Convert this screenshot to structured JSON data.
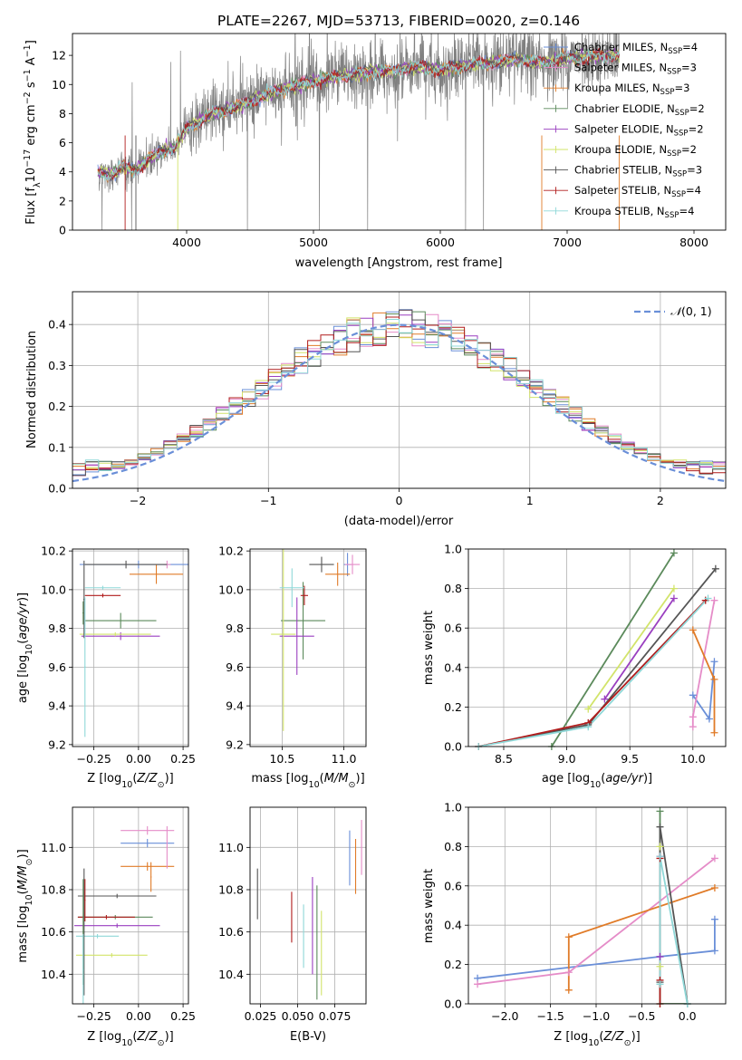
{
  "figure_title": "PLATE=2267, MJD=53713, FIBERID=0020, z=0.146",
  "series_styles": [
    {
      "name": "Chabrier MILES, N_SSP=4",
      "color": "#6a8fd8"
    },
    {
      "name": "Salpeter MILES, N_SSP=3",
      "color": "#e58cc8"
    },
    {
      "name": "Kroupa MILES, N_SSP=3",
      "color": "#e07b28"
    },
    {
      "name": "Chabrier ELODIE, N_SSP=2",
      "color": "#5b8a5b"
    },
    {
      "name": "Salpeter ELODIE, N_SSP=2",
      "color": "#9a3fc0"
    },
    {
      "name": "Kroupa ELODIE, N_SSP=2",
      "color": "#d2e46a"
    },
    {
      "name": "Chabrier STELIB, N_SSP=3",
      "color": "#555555"
    },
    {
      "name": "Salpeter STELIB, N_SSP=4",
      "color": "#b01c1c"
    },
    {
      "name": "Kroupa STELIB, N_SSP=4",
      "color": "#8fd8d8"
    }
  ],
  "data_color": "#808080",
  "chart_data": [
    {
      "id": "spectrum",
      "type": "line",
      "title": "PLATE=2267, MJD=53713, FIBERID=0020, z=0.146",
      "xlabel": "wavelength [Angstrom, rest frame]",
      "ylabel": "Flux [f_λ 10^-17 erg cm^-2 s^-1 A^-1]",
      "xlim": [
        3100,
        8250
      ],
      "ylim": [
        0,
        13.5
      ],
      "xticks": [
        4000,
        5000,
        6000,
        7000,
        8000
      ],
      "yticks": [
        0,
        2,
        4,
        6,
        8,
        10,
        12
      ],
      "grid": false,
      "legend_position": "top-right",
      "legend": [
        {
          "label": "Chabrier MILES, N",
          "sub": "SSP",
          "suffix": "=4"
        },
        {
          "label": "Salpeter MILES, N",
          "sub": "SSP",
          "suffix": "=3"
        },
        {
          "label": "Kroupa MILES, N",
          "sub": "SSP",
          "suffix": "=3"
        },
        {
          "label": "Chabrier ELODIE, N",
          "sub": "SSP",
          "suffix": "=2"
        },
        {
          "label": "Salpeter ELODIE, N",
          "sub": "SSP",
          "suffix": "=2"
        },
        {
          "label": "Kroupa ELODIE, N",
          "sub": "SSP",
          "suffix": "=2"
        },
        {
          "label": "Chabrier STELIB, N",
          "sub": "SSP",
          "suffix": "=3"
        },
        {
          "label": "Salpeter STELIB, N",
          "sub": "SSP",
          "suffix": "=4"
        },
        {
          "label": "Kroupa STELIB, N",
          "sub": "SSP",
          "suffix": "=4"
        }
      ],
      "continuum_x": [
        3300,
        3400,
        3500,
        3600,
        3700,
        3800,
        3900,
        4000,
        4200,
        4400,
        4600,
        4800,
        5000,
        5200,
        5400,
        5600,
        5800,
        6000,
        6200,
        6400,
        6600,
        6800,
        7000,
        7200,
        7400
      ],
      "continuum_y": [
        4.0,
        3.8,
        4.3,
        4.1,
        4.9,
        5.4,
        5.6,
        7.0,
        8.0,
        8.5,
        9.2,
        9.8,
        10.2,
        10.6,
        10.8,
        10.9,
        11.2,
        11.0,
        11.3,
        11.5,
        11.7,
        11.5,
        11.8,
        11.9,
        12.0
      ],
      "data_range": [
        3300,
        7410
      ],
      "model_range": [
        3300,
        7410
      ]
    },
    {
      "id": "residuals",
      "type": "histogram",
      "xlabel": "(data-model)/error",
      "ylabel": "Normed distribution",
      "xlim": [
        -2.5,
        2.5
      ],
      "ylim": [
        0,
        0.48
      ],
      "xticks": [
        -2,
        -1,
        0,
        1,
        2
      ],
      "yticks": [
        0.0,
        0.1,
        0.2,
        0.3,
        0.4
      ],
      "grid": true,
      "bin_width": 0.1,
      "reference_curve": {
        "label": "N(0,1)",
        "mean": 0,
        "sigma": 1,
        "color": "#6a8fd8"
      },
      "legend_position": "top-right"
    },
    {
      "id": "age_vs_Z",
      "type": "errorbar",
      "xlabel": "Z [log10(Z/Z⊙)]",
      "ylabel": "age [log10(age/yr)]",
      "xlim": [
        -0.37,
        0.28
      ],
      "ylim": [
        9.19,
        10.21
      ],
      "xticks": [
        -0.25,
        0.0,
        0.25
      ],
      "yticks": [
        9.2,
        9.4,
        9.6,
        9.8,
        10.0,
        10.2
      ],
      "grid": true,
      "points": [
        {
          "series": 0,
          "x": 0.0,
          "xerr": 0.33,
          "y": 10.13,
          "yerr": 0.02
        },
        {
          "series": 1,
          "x": 0.16,
          "xerr": 0.02,
          "y": 10.13,
          "yerr": 0.02
        },
        {
          "series": 2,
          "x": 0.1,
          "xerr": 0.15,
          "y": 10.08,
          "yerr": 0.05
        },
        {
          "series": 3,
          "x": -0.1,
          "xerr": 0.2,
          "y": 9.84,
          "yerr": 0.04
        },
        {
          "series": 4,
          "x": -0.1,
          "xerr": 0.22,
          "y": 9.76,
          "yerr": 0.02
        },
        {
          "series": 5,
          "x": -0.13,
          "xerr": 0.2,
          "y": 9.77,
          "yerr": 0.01
        },
        {
          "series": 6,
          "x": -0.07,
          "xerr": 0.23,
          "y": 10.13,
          "yerr": 0.02
        },
        {
          "series": 7,
          "x": -0.2,
          "xerr": 0.1,
          "y": 9.97,
          "yerr": 0.01
        },
        {
          "series": 8,
          "x": -0.2,
          "xerr": 0.1,
          "y": 10.01,
          "yerr": 0.01
        },
        {
          "series": 6,
          "x": -0.305,
          "xerr": 0.004,
          "y": 9.95,
          "yerr": 0.2
        },
        {
          "series": 8,
          "x": -0.3,
          "xerr": 0.004,
          "y": 9.6,
          "yerr": 0.36
        },
        {
          "series": 3,
          "x": -0.31,
          "xerr": 0.004,
          "y": 9.88,
          "yerr": 0.06
        }
      ]
    },
    {
      "id": "age_vs_mass",
      "type": "errorbar",
      "xlabel": "mass [log10(M/M⊙)]",
      "ylabel": "",
      "xlim": [
        10.24,
        11.18
      ],
      "ylim": [
        9.19,
        10.21
      ],
      "xticks": [
        10.5,
        11.0
      ],
      "yticks": [
        9.2,
        9.4,
        9.6,
        9.8,
        10.0,
        10.2
      ],
      "grid": true,
      "points": [
        {
          "series": 0,
          "x": 11.03,
          "xerr": 0.03,
          "y": 10.13,
          "yerr": 0.06
        },
        {
          "series": 1,
          "x": 11.07,
          "xerr": 0.06,
          "y": 10.13,
          "yerr": 0.05
        },
        {
          "series": 2,
          "x": 10.95,
          "xerr": 0.1,
          "y": 10.08,
          "yerr": 0.06
        },
        {
          "series": 3,
          "x": 10.67,
          "xerr": 0.18,
          "y": 9.84,
          "yerr": 0.2
        },
        {
          "series": 4,
          "x": 10.62,
          "xerr": 0.14,
          "y": 9.76,
          "yerr": 0.2
        },
        {
          "series": 5,
          "x": 10.51,
          "xerr": 0.1,
          "y": 9.77,
          "yerr": 0.5
        },
        {
          "series": 6,
          "x": 10.82,
          "xerr": 0.1,
          "y": 10.13,
          "yerr": 0.04
        },
        {
          "series": 7,
          "x": 10.68,
          "xerr": 0.03,
          "y": 9.97,
          "yerr": 0.05
        },
        {
          "series": 8,
          "x": 10.58,
          "xerr": 0.1,
          "y": 10.01,
          "yerr": 0.1
        }
      ]
    },
    {
      "id": "massweight_vs_age",
      "type": "line",
      "xlabel": "age [log10(age/yr)]",
      "ylabel": "mass weight",
      "xlim": [
        8.22,
        10.26
      ],
      "ylim": [
        0,
        1
      ],
      "xticks": [
        8.5,
        9.0,
        9.5,
        10.0
      ],
      "yticks": [
        0.0,
        0.2,
        0.4,
        0.6,
        0.8,
        1.0
      ],
      "grid": true,
      "lines": [
        {
          "series": 3,
          "x": [
            8.88,
            9.85
          ],
          "y": [
            0.0,
            0.98
          ]
        },
        {
          "series": 5,
          "x": [
            9.17,
            9.85
          ],
          "y": [
            0.19,
            0.8
          ]
        },
        {
          "series": 4,
          "x": [
            9.3,
            9.85
          ],
          "y": [
            0.24,
            0.75
          ]
        },
        {
          "series": 6,
          "x": [
            8.3,
            9.17,
            10.18
          ],
          "y": [
            0.0,
            0.11,
            0.9
          ]
        },
        {
          "series": 7,
          "x": [
            8.3,
            9.17,
            10.1
          ],
          "y": [
            0.0,
            0.12,
            0.74
          ]
        },
        {
          "series": 8,
          "x": [
            8.3,
            9.17,
            10.12
          ],
          "y": [
            0.0,
            0.1,
            0.75
          ]
        },
        {
          "series": 0,
          "x": [
            10.0,
            10.13,
            10.17
          ],
          "y": [
            0.26,
            0.14,
            0.43
          ]
        },
        {
          "series": 1,
          "x": [
            10.0,
            10.0,
            10.17
          ],
          "y": [
            0.1,
            0.15,
            0.74
          ]
        },
        {
          "series": 2,
          "x": [
            10.0,
            10.17,
            10.17
          ],
          "y": [
            0.59,
            0.34,
            0.07
          ]
        }
      ]
    },
    {
      "id": "mass_vs_Z",
      "type": "errorbar",
      "xlabel": "Z [log10(Z/Z⊙)]",
      "ylabel": "mass [log10(M/M⊙)]",
      "xlim": [
        -0.37,
        0.28
      ],
      "ylim": [
        10.26,
        11.19
      ],
      "xticks": [
        -0.25,
        0.0,
        0.25
      ],
      "yticks": [
        10.4,
        10.6,
        10.8,
        11.0
      ],
      "grid": true,
      "points": [
        {
          "series": 0,
          "x": 0.05,
          "xerr": 0.15,
          "y": 11.02,
          "yerr": 0.02
        },
        {
          "series": 1,
          "x": 0.05,
          "xerr": 0.15,
          "y": 11.08,
          "yerr": 0.02
        },
        {
          "series": 2,
          "x": 0.05,
          "xerr": 0.15,
          "y": 10.91,
          "yerr": 0.02
        },
        {
          "series": 2,
          "x": 0.07,
          "xerr": 0.003,
          "y": 10.86,
          "yerr": 0.07
        },
        {
          "series": 1,
          "x": 0.16,
          "xerr": 0.003,
          "y": 11.0,
          "yerr": 0.1
        },
        {
          "series": 6,
          "x": -0.12,
          "xerr": 0.22,
          "y": 10.77,
          "yerr": 0.01
        },
        {
          "series": 3,
          "x": -0.13,
          "xerr": 0.21,
          "y": 10.67,
          "yerr": 0.01
        },
        {
          "series": 7,
          "x": -0.18,
          "xerr": 0.16,
          "y": 10.67,
          "yerr": 0.01
        },
        {
          "series": 4,
          "x": -0.12,
          "xerr": 0.24,
          "y": 10.63,
          "yerr": 0.01
        },
        {
          "series": 8,
          "x": -0.23,
          "xerr": 0.12,
          "y": 10.58,
          "yerr": 0.01
        },
        {
          "series": 5,
          "x": -0.15,
          "xerr": 0.2,
          "y": 10.49,
          "yerr": 0.01
        },
        {
          "series": 6,
          "x": -0.305,
          "xerr": 0.003,
          "y": 10.6,
          "yerr": 0.3
        },
        {
          "series": 3,
          "x": -0.31,
          "xerr": 0.003,
          "y": 10.6,
          "yerr": 0.25
        },
        {
          "series": 7,
          "x": -0.3,
          "xerr": 0.003,
          "y": 10.75,
          "yerr": 0.1
        },
        {
          "series": 8,
          "x": -0.31,
          "xerr": 0.003,
          "y": 10.42,
          "yerr": 0.17
        }
      ]
    },
    {
      "id": "mass_vs_ebv",
      "type": "errorbar",
      "xlabel": "E(B-V)",
      "ylabel": "",
      "xlim": [
        0.018,
        0.096
      ],
      "ylim": [
        10.26,
        11.19
      ],
      "xticks": [
        0.025,
        0.05,
        0.075
      ],
      "yticks": [
        10.4,
        10.6,
        10.8,
        11.0
      ],
      "grid": true,
      "points": [
        {
          "series": 6,
          "x": 0.023,
          "xerr": 0.0,
          "y": 10.78,
          "yerr": 0.12
        },
        {
          "series": 7,
          "x": 0.046,
          "xerr": 0.0,
          "y": 10.67,
          "yerr": 0.12
        },
        {
          "series": 8,
          "x": 0.054,
          "xerr": 0.0,
          "y": 10.58,
          "yerr": 0.15
        },
        {
          "series": 4,
          "x": 0.06,
          "xerr": 0.0,
          "y": 10.63,
          "yerr": 0.23
        },
        {
          "series": 3,
          "x": 0.063,
          "xerr": 0.0,
          "y": 10.55,
          "yerr": 0.27
        },
        {
          "series": 5,
          "x": 0.066,
          "xerr": 0.0,
          "y": 10.5,
          "yerr": 0.2
        },
        {
          "series": 0,
          "x": 0.085,
          "xerr": 0.0,
          "y": 10.95,
          "yerr": 0.13
        },
        {
          "series": 2,
          "x": 0.089,
          "xerr": 0.0,
          "y": 10.91,
          "yerr": 0.13
        },
        {
          "series": 1,
          "x": 0.093,
          "xerr": 0.0,
          "y": 11.0,
          "yerr": 0.13
        }
      ]
    },
    {
      "id": "massweight_vs_Z",
      "type": "line",
      "xlabel": "Z [log10(Z/Z⊙)]",
      "ylabel": "mass weight",
      "xlim": [
        -2.4,
        0.42
      ],
      "ylim": [
        0,
        1
      ],
      "xticks": [
        -2.0,
        -1.5,
        -1.0,
        -0.5,
        0.0
      ],
      "yticks": [
        0.0,
        0.2,
        0.4,
        0.6,
        0.8,
        1.0
      ],
      "grid": true,
      "lines": [
        {
          "series": 0,
          "x": [
            -2.3,
            -0.3,
            0.3,
            0.3
          ],
          "y": [
            0.13,
            0.24,
            0.27,
            0.43
          ]
        },
        {
          "series": 1,
          "x": [
            -2.3,
            -1.3,
            0.3
          ],
          "y": [
            0.1,
            0.16,
            0.74
          ]
        },
        {
          "series": 2,
          "x": [
            -1.3,
            -1.3,
            0.3
          ],
          "y": [
            0.07,
            0.34,
            0.59
          ]
        },
        {
          "series": 3,
          "x": [
            -0.3,
            -0.3,
            0.0
          ],
          "y": [
            0.98,
            0.0,
            0.0
          ]
        },
        {
          "series": 4,
          "x": [
            -0.3,
            -0.3
          ],
          "y": [
            0.75,
            0.24
          ]
        },
        {
          "series": 5,
          "x": [
            -0.3,
            -0.3
          ],
          "y": [
            0.8,
            0.19
          ]
        },
        {
          "series": 6,
          "x": [
            -0.3,
            -0.3,
            0.0
          ],
          "y": [
            0.11,
            0.9,
            0.0
          ]
        },
        {
          "series": 7,
          "x": [
            -0.3,
            -0.3,
            -0.3
          ],
          "y": [
            0.0,
            0.12,
            0.74
          ]
        },
        {
          "series": 8,
          "x": [
            -0.3,
            -0.3,
            0.0
          ],
          "y": [
            0.1,
            0.75,
            0.0
          ]
        }
      ]
    }
  ]
}
